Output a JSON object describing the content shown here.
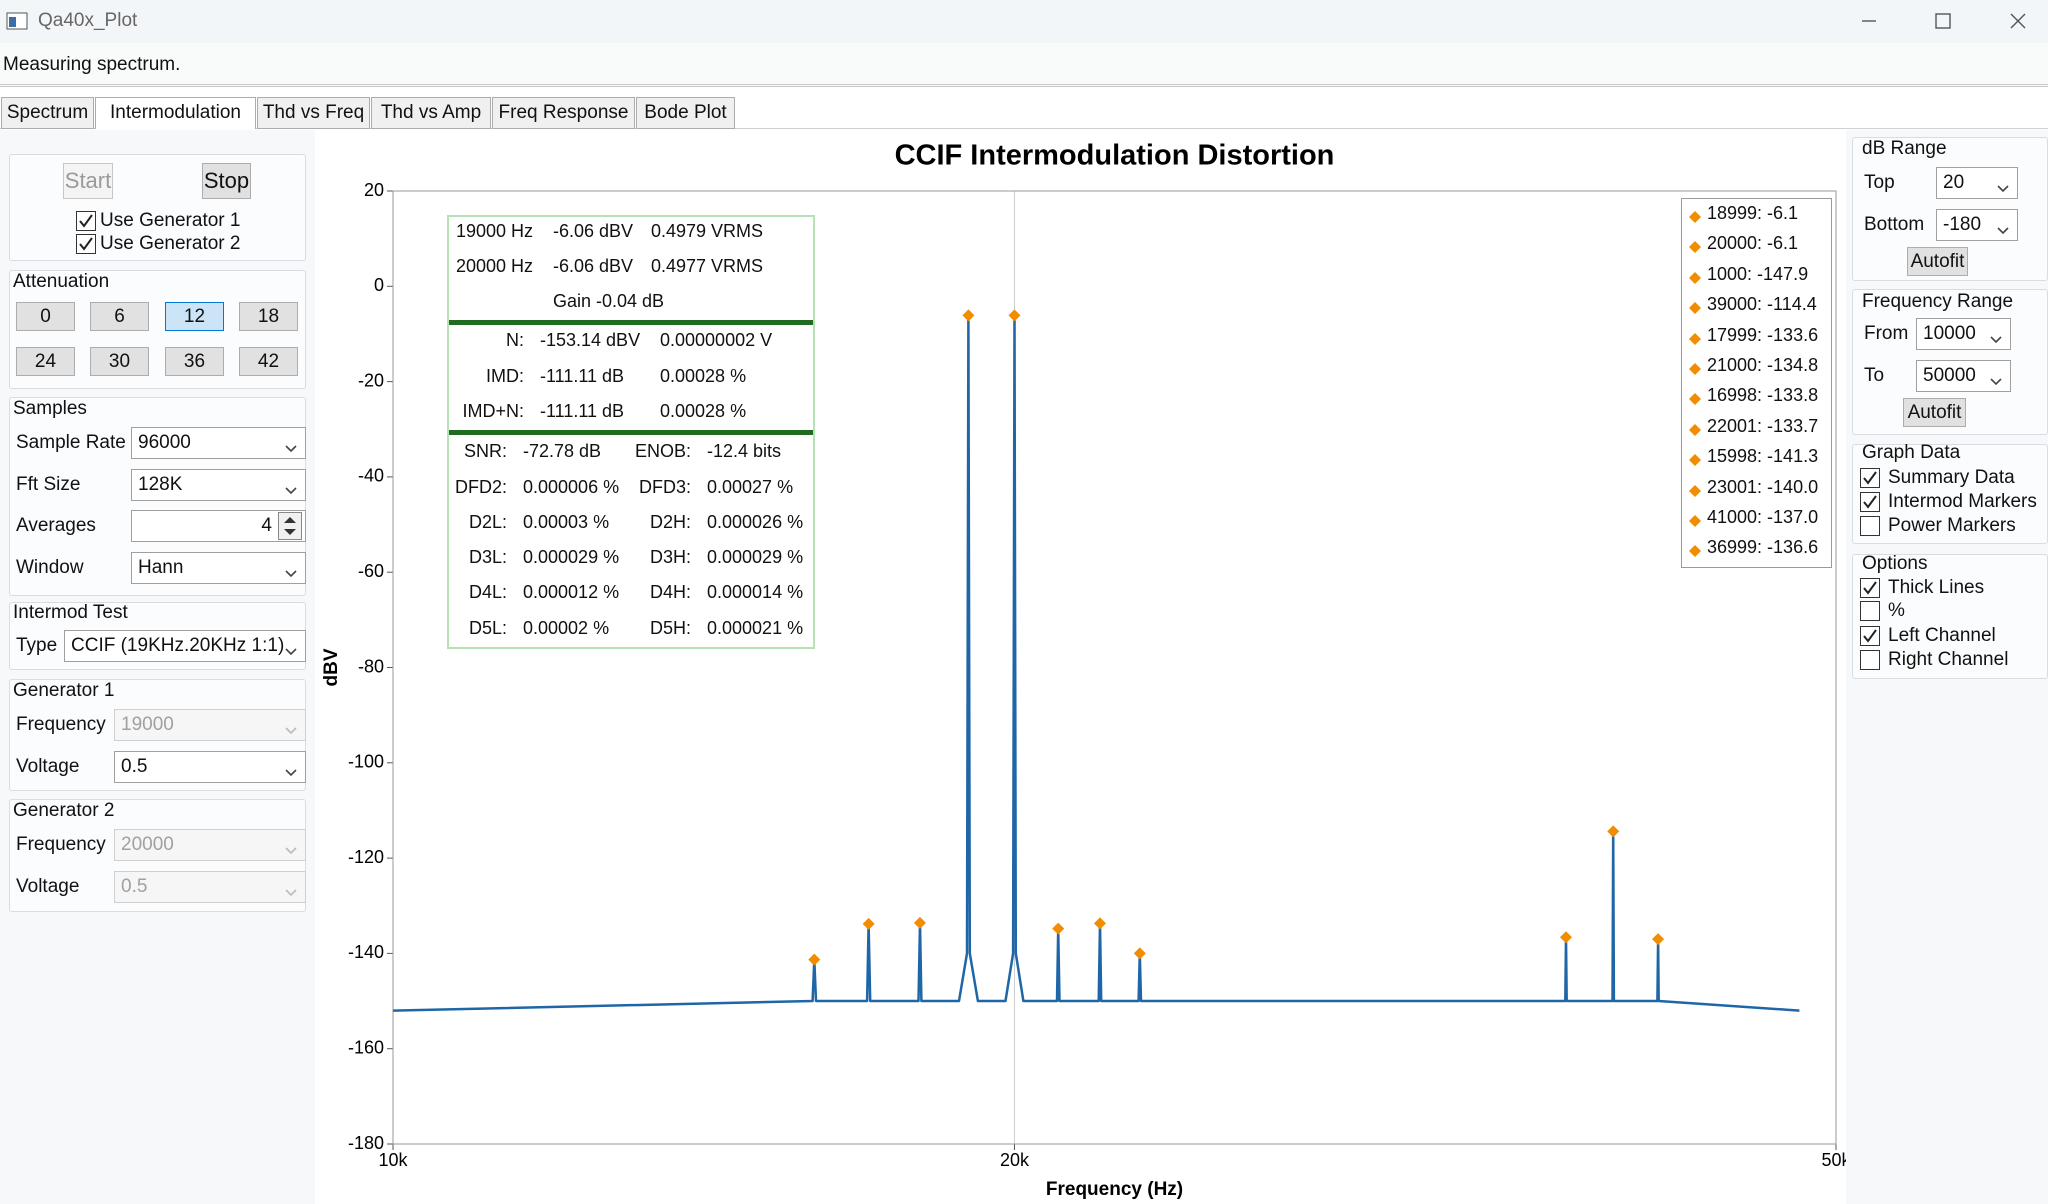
{
  "window": {
    "title": "Qa40x_Plot"
  },
  "status": "Measuring spectrum.",
  "tabs": [
    "Spectrum",
    "Intermodulation",
    "Thd vs Freq",
    "Thd vs Amp",
    "Freq Response",
    "Bode Plot"
  ],
  "active_tab": 1,
  "left_panel": {
    "buttons": [
      {
        "label": "Start",
        "disabled": true
      },
      {
        "label": "Stop",
        "disabled": false
      }
    ],
    "checkboxes": [
      {
        "label": "Use Generator 1",
        "checked": true
      },
      {
        "label": "Use Generator 2",
        "checked": true
      }
    ],
    "attenuation": {
      "title": "Attenuation",
      "options": [
        "0",
        "6",
        "12",
        "18",
        "24",
        "30",
        "36",
        "42"
      ],
      "selected": 2
    },
    "groups": [
      {
        "title": "Samples",
        "fields": [
          {
            "label": "Sample Rate",
            "value": "96000"
          },
          {
            "label": "Fft Size",
            "value": "128K"
          },
          {
            "label": "Averages",
            "value": "4"
          },
          {
            "label": "Window",
            "value": "Hann"
          }
        ]
      },
      {
        "title": "Intermod Test",
        "fields": [
          {
            "label": "Type",
            "value": "CCIF (19KHz.20KHz 1:1)"
          }
        ]
      },
      {
        "title": "Generator 1",
        "fields": [
          {
            "label": "Frequency",
            "value": "19000",
            "disabled": true
          },
          {
            "label": "Voltage",
            "value": "0.5"
          }
        ]
      },
      {
        "title": "Generator 2",
        "fields": [
          {
            "label": "Frequency",
            "value": "20000",
            "disabled": true
          },
          {
            "label": "Voltage",
            "value": "0.5",
            "disabled": true
          }
        ]
      }
    ]
  },
  "right_panel": {
    "groups": [
      {
        "title": "dB Range",
        "fields": [
          {
            "label": "Top",
            "value": "20"
          },
          {
            "label": "Bottom",
            "value": "-180"
          }
        ],
        "button": "Autofit"
      },
      {
        "title": "Frequency Range",
        "fields": [
          {
            "label": "From",
            "value": "10000"
          },
          {
            "label": "To",
            "value": "50000"
          }
        ],
        "button": "Autofit"
      }
    ],
    "checkgroups": [
      {
        "title": "Graph Data",
        "checkboxes": [
          {
            "label": "Summary Data",
            "checked": true
          },
          {
            "label": "Intermod Markers",
            "checked": true
          },
          {
            "label": "Power Markers",
            "checked": false
          }
        ]
      },
      {
        "title": "Options",
        "checkboxes": [
          {
            "label": "Thick Lines",
            "checked": true
          },
          {
            "label": "%",
            "checked": false
          },
          {
            "label": "Left Channel",
            "checked": true
          },
          {
            "label": "Right Channel",
            "checked": false
          }
        ]
      }
    ]
  },
  "summary": {
    "sections": [
      {
        "rows": [
          [
            "19000 Hz",
            "-6.06 dBV",
            "0.4979 VRMS"
          ],
          [
            "20000 Hz",
            "-6.06 dBV",
            "0.4977 VRMS"
          ],
          [
            "Gain -0.04 dB"
          ]
        ]
      },
      {
        "rows": [
          [
            "N:",
            "-153.14 dBV",
            "0.00000002 V"
          ],
          [
            "IMD:",
            "-111.11 dB",
            "0.00028 %"
          ],
          [
            "IMD+N:",
            "-111.11 dB",
            "0.00028 %"
          ]
        ]
      },
      {
        "rows": [
          [
            "SNR:",
            "-72.78 dB",
            "ENOB:",
            "-12.4 bits"
          ],
          [
            "DFD2:",
            "0.000006 %",
            "DFD3:",
            "0.00027 %"
          ],
          [
            "D2L:",
            "0.00003 %",
            "D2H:",
            "0.000026 %"
          ],
          [
            "D3L:",
            "0.000029 %",
            "D3H:",
            "0.000029 %"
          ],
          [
            "D4L:",
            "0.000012 %",
            "D4H:",
            "0.000014 %"
          ],
          [
            "D5L:",
            "0.00002 %",
            "D5H:",
            "0.000021 %"
          ]
        ]
      }
    ]
  },
  "chart_data": {
    "type": "line",
    "title": "CCIF  Intermodulation Distortion",
    "xlabel": "Frequency (Hz)",
    "ylabel": "dBV",
    "xscale": "log",
    "xlim": [
      10000,
      50000
    ],
    "xticks": [
      {
        "value": 10000,
        "label": "10k"
      },
      {
        "value": 20000,
        "label": "20k"
      },
      {
        "value": 50000,
        "label": "50k"
      }
    ],
    "ylim": [
      -180,
      20
    ],
    "yticks": [
      20,
      0,
      -20,
      -40,
      -60,
      -80,
      -100,
      -120,
      -140,
      -160,
      -180
    ],
    "grid": "x",
    "series": [
      {
        "color": "#1f66a6",
        "x": [
          10000,
          15968,
          15998,
          16028,
          16968,
          16998,
          17028,
          17969,
          17999,
          18029,
          18800,
          18969,
          18999,
          19029,
          19200,
          19800,
          19970,
          20000,
          20030,
          20200,
          20971,
          21000,
          21030,
          21971,
          22001,
          22031,
          22971,
          23001,
          23031,
          36969,
          36999,
          37029,
          38970,
          39000,
          39030,
          40970,
          41000,
          41030,
          48000
        ],
        "values": [
          -152,
          -150,
          -141.3,
          -150,
          -150,
          -133.8,
          -150,
          -150,
          -133.6,
          -150,
          -150,
          -140,
          -6.06,
          -140,
          -150,
          -150,
          -140,
          -6.06,
          -140,
          -150,
          -150,
          -134.8,
          -150,
          -150,
          -133.7,
          -150,
          -150,
          -140,
          -150,
          -150,
          -136.6,
          -150,
          -150,
          -114.4,
          -150,
          -150,
          -137,
          -150,
          -152
        ]
      }
    ],
    "markers": {
      "color": "#f28c00",
      "points": [
        {
          "x": 18999,
          "value": -6.1,
          "label": "18999: -6.1"
        },
        {
          "x": 20000,
          "value": -6.1,
          "label": "20000: -6.1"
        },
        {
          "x": 1000,
          "value": -147.9,
          "label": "1000: -147.9"
        },
        {
          "x": 39000,
          "value": -114.4,
          "label": "39000: -114.4"
        },
        {
          "x": 17999,
          "value": -133.6,
          "label": "17999: -133.6"
        },
        {
          "x": 21000,
          "value": -134.8,
          "label": "21000: -134.8"
        },
        {
          "x": 16998,
          "value": -133.8,
          "label": "16998: -133.8"
        },
        {
          "x": 22001,
          "value": -133.7,
          "label": "22001: -133.7"
        },
        {
          "x": 15998,
          "value": -141.3,
          "label": "15998: -141.3"
        },
        {
          "x": 23001,
          "value": -140.0,
          "label": "23001: -140.0"
        },
        {
          "x": 41000,
          "value": -137.0,
          "label": "41000: -137.0"
        },
        {
          "x": 36999,
          "value": -136.6,
          "label": "36999: -136.6"
        }
      ]
    }
  }
}
